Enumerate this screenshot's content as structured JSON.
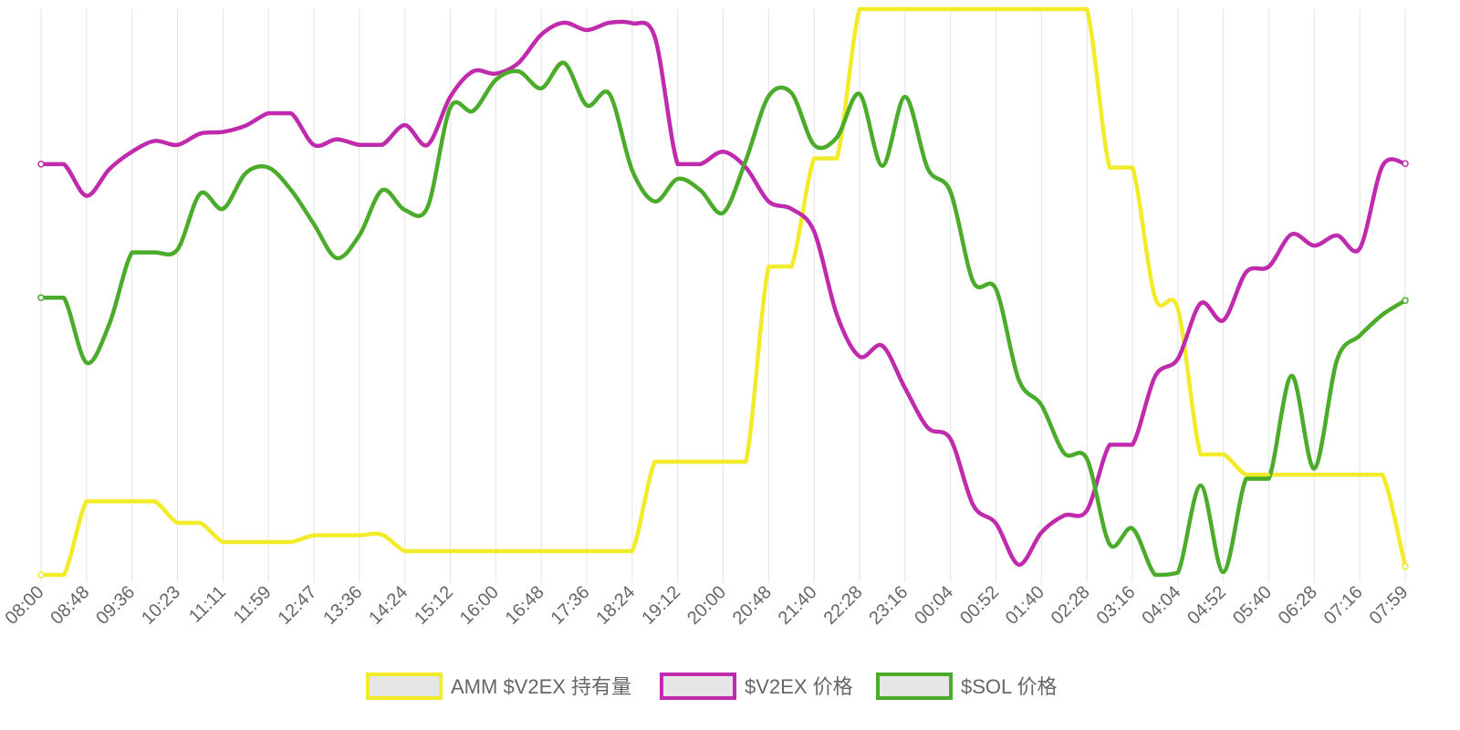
{
  "chart_data": {
    "type": "line",
    "title": "",
    "xlabel": "",
    "ylabel": "",
    "x_tick_labels": [
      "08:00",
      "08:48",
      "09:36",
      "10:23",
      "11:11",
      "11:59",
      "12:47",
      "13:36",
      "14:24",
      "15:12",
      "16:00",
      "16:48",
      "17:36",
      "18:24",
      "19:12",
      "20:00",
      "20:48",
      "21:40",
      "22:28",
      "23:16",
      "00:04",
      "00:52",
      "01:40",
      "02:28",
      "03:16",
      "04:04",
      "04:52",
      "05:40",
      "06:28",
      "07:16",
      "07:59"
    ],
    "ylim": [
      0,
      100
    ],
    "y_axis_labels_shown": false,
    "grid": {
      "vertical": true,
      "horizontal": false
    },
    "legend": {
      "position": "bottom",
      "style": "filled box"
    },
    "note_values": "normalized 0-100 (no y-axis scale printed)",
    "x": [
      0,
      1,
      2,
      3,
      4,
      5,
      6,
      7,
      8,
      9,
      10,
      11,
      12,
      13,
      14,
      15,
      16,
      17,
      18,
      19,
      20,
      21,
      22,
      23,
      24,
      25,
      26,
      27,
      28,
      29,
      30,
      31,
      32,
      33,
      34,
      35,
      36,
      37,
      38,
      39,
      40,
      41,
      42,
      43,
      44,
      45,
      46,
      47,
      48,
      49,
      50,
      51,
      52,
      53,
      54,
      55,
      56,
      57,
      58,
      59,
      60
    ],
    "series": [
      {
        "name": "AMM $V2EX 持有量",
        "color": "#f2eb2a",
        "values": [
          0,
          0,
          13,
          13,
          13,
          13,
          9.2,
          9.2,
          5.8,
          5.8,
          5.8,
          5.8,
          7,
          7,
          7,
          7.1,
          4.2,
          4.2,
          4.2,
          4.2,
          4.2,
          4.2,
          4.2,
          4.2,
          4.2,
          4.2,
          4.2,
          20,
          20,
          20,
          20,
          20,
          54.5,
          54.5,
          73.6,
          73.6,
          100,
          100,
          100,
          100,
          100,
          100,
          100,
          100,
          100,
          100,
          100,
          72,
          72,
          49,
          47,
          21.3,
          21.3,
          17.7,
          17.7,
          17.7,
          17.7,
          17.7,
          17.7,
          17.7,
          1.5
        ]
      },
      {
        "name": "$V2EX 价格",
        "color": "#c02aac",
        "values": [
          72.6,
          72.6,
          67,
          71.7,
          74.8,
          76.7,
          76,
          78,
          78.3,
          79.4,
          81.6,
          81.6,
          76,
          77,
          76,
          76,
          79.5,
          76,
          84.5,
          89,
          88.6,
          90.5,
          95.5,
          97.6,
          96.3,
          97.6,
          97.5,
          95,
          72.6,
          72.6,
          74.8,
          72,
          66,
          64.7,
          60.7,
          46,
          38.6,
          40.5,
          33,
          26,
          24,
          12.3,
          9.1,
          1.8,
          7.5,
          10.5,
          11.4,
          23,
          23,
          35.1,
          38.2,
          48,
          45,
          53.5,
          54.5,
          60.2,
          58.2,
          60,
          57.7,
          72.3,
          72.7
        ]
      },
      {
        "name": "$SOL 价格",
        "color": "#4aac2a",
        "values": [
          49,
          49,
          37.5,
          44.3,
          57,
          57,
          57.5,
          67.4,
          64.7,
          71,
          72,
          68,
          62,
          56,
          60,
          68,
          64.5,
          65,
          82.6,
          82,
          87.5,
          89,
          86,
          90.5,
          83,
          85,
          71.5,
          66,
          70,
          68,
          64,
          73.3,
          84.6,
          85.2,
          76,
          77.3,
          85,
          72.3,
          84.5,
          71.8,
          67.7,
          51.8,
          50.5,
          34.5,
          30,
          21.5,
          20.5,
          5.4,
          8.2,
          0,
          0.4,
          15.8,
          0.5,
          17,
          17,
          35.2,
          18.8,
          38,
          42.3,
          46,
          48.5
        ]
      }
    ]
  }
}
